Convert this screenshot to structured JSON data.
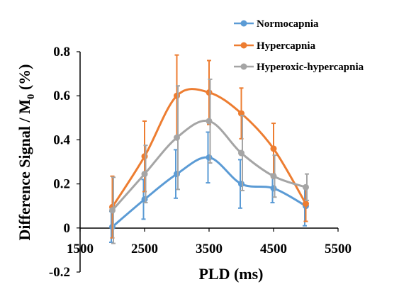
{
  "chart_data": {
    "type": "line",
    "title": "",
    "xlabel": "PLD (ms)",
    "ylabel_main": "Difference Signal / M",
    "ylabel_sub": "0",
    "ylabel_unit": " (%)",
    "xlim": [
      1500,
      5500
    ],
    "ylim": [
      -0.2,
      0.8
    ],
    "x_ticks": [
      1500,
      2500,
      3500,
      4500,
      5500
    ],
    "x_tick_labels": [
      "1500",
      "2500",
      "3500",
      "4500",
      "5500"
    ],
    "y_ticks": [
      -0.2,
      0,
      0.2,
      0.4,
      0.6,
      0.8
    ],
    "y_tick_labels": [
      "-0.2",
      "0",
      "0.2",
      "0.4",
      "0.6",
      "0.8"
    ],
    "grid": false,
    "legend_position": "top-right",
    "smooth": true,
    "x": [
      2000,
      2500,
      3000,
      3500,
      4000,
      4500,
      5000
    ],
    "series": [
      {
        "name": "Normocapnia",
        "color": "#5B9BD5",
        "values": [
          0.005,
          0.13,
          0.245,
          0.32,
          0.2,
          0.18,
          0.1
        ],
        "errors": [
          0.07,
          0.09,
          0.11,
          0.115,
          0.11,
          0.065,
          0.09
        ]
      },
      {
        "name": "Hypercapnia",
        "color": "#ED7D31",
        "values": [
          0.095,
          0.325,
          0.6,
          0.615,
          0.52,
          0.36,
          0.11
        ],
        "errors": [
          0.14,
          0.16,
          0.185,
          0.145,
          0.115,
          0.115,
          0.08
        ]
      },
      {
        "name": "Hyperoxic-hypercapnia",
        "color": "#A5A5A5",
        "values": [
          0.08,
          0.245,
          0.41,
          0.485,
          0.34,
          0.235,
          0.185
        ],
        "errors": [
          0.15,
          0.13,
          0.235,
          0.19,
          0.17,
          0.095,
          0.06
        ]
      }
    ]
  }
}
